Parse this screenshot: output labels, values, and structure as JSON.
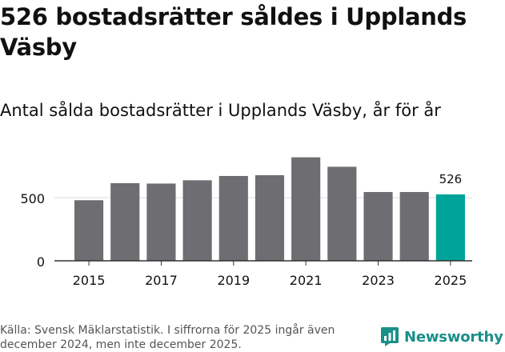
{
  "headline": "526 bostadsrätter såldes i Upplands Väsby",
  "subtitle": "Antal sålda bostadsrätter i Upplands Väsby, år för år",
  "source": "Källa: Svensk Mäklarstatistik. I siffrorna för 2025 ingår även december 2024, men inte december 2025.",
  "brand": "Newsworthy",
  "colors": {
    "bar": "#6e6d72",
    "highlight": "#00a39a",
    "grid": "#dddddd",
    "axis": "#333333"
  },
  "chart_data": {
    "type": "bar",
    "title": "Antal sålda bostadsrätter i Upplands Väsby, år för år",
    "categories": [
      "2015",
      "2016",
      "2017",
      "2018",
      "2019",
      "2020",
      "2021",
      "2022",
      "2023",
      "2024",
      "2025"
    ],
    "values": [
      480,
      615,
      612,
      638,
      672,
      678,
      820,
      745,
      545,
      545,
      526
    ],
    "highlight_index": 10,
    "data_labels": [
      {
        "index": 10,
        "text": "526"
      }
    ],
    "x_tick_labels": [
      "2015",
      "2017",
      "2019",
      "2021",
      "2023",
      "2025"
    ],
    "y_ticks": [
      0,
      500
    ],
    "y_tick_labels": [
      "0",
      "500"
    ],
    "ylim": [
      0,
      900
    ],
    "xlabel": "",
    "ylabel": "",
    "grid": true
  }
}
